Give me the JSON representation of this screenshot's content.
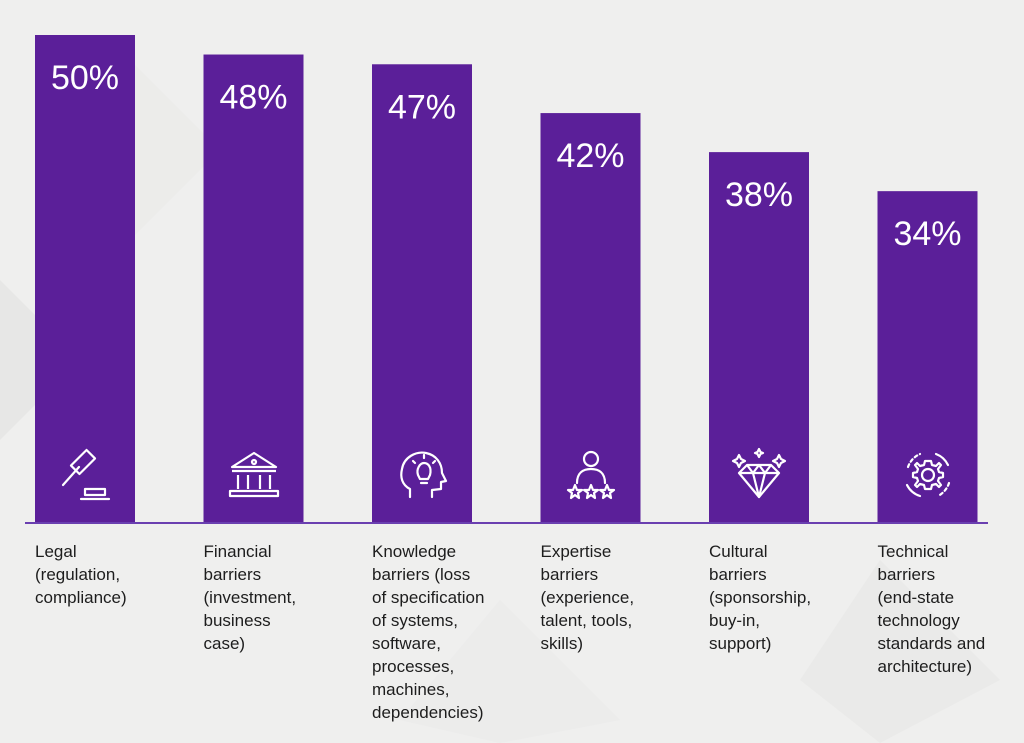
{
  "colors": {
    "bar": "#5b1f99",
    "axis": "#6a3fb0",
    "background": "#efefee",
    "bar_text": "#ffffff",
    "label_text": "#1d1d1d"
  },
  "chart_data": {
    "type": "bar",
    "categories": [
      "Legal\n(regulation,\ncompliance)",
      "Financial\nbarriers\n(investment,\nbusiness\ncase)",
      "Knowledge\nbarriers (loss\nof specification\nof systems,\nsoftware,\nprocesses,\nmachines,\ndependencies)",
      "Expertise\nbarriers\n(experience,\ntalent, tools,\nskills)",
      "Cultural\nbarriers\n(sponsorship,\nbuy-in,\nsupport)",
      "Technical\nbarriers\n(end-state\ntechnology\nstandards and\narchitecture)"
    ],
    "values": [
      50,
      48,
      47,
      42,
      38,
      34
    ],
    "value_labels": [
      "50%",
      "48%",
      "47%",
      "42%",
      "38%",
      "34%"
    ],
    "icons": [
      "gavel-icon",
      "bank-icon",
      "head-lightbulb-icon",
      "person-stars-icon",
      "diamond-icon",
      "gear-cycle-icon"
    ],
    "ylim": [
      0,
      50
    ],
    "grid": false,
    "legend": "none"
  }
}
